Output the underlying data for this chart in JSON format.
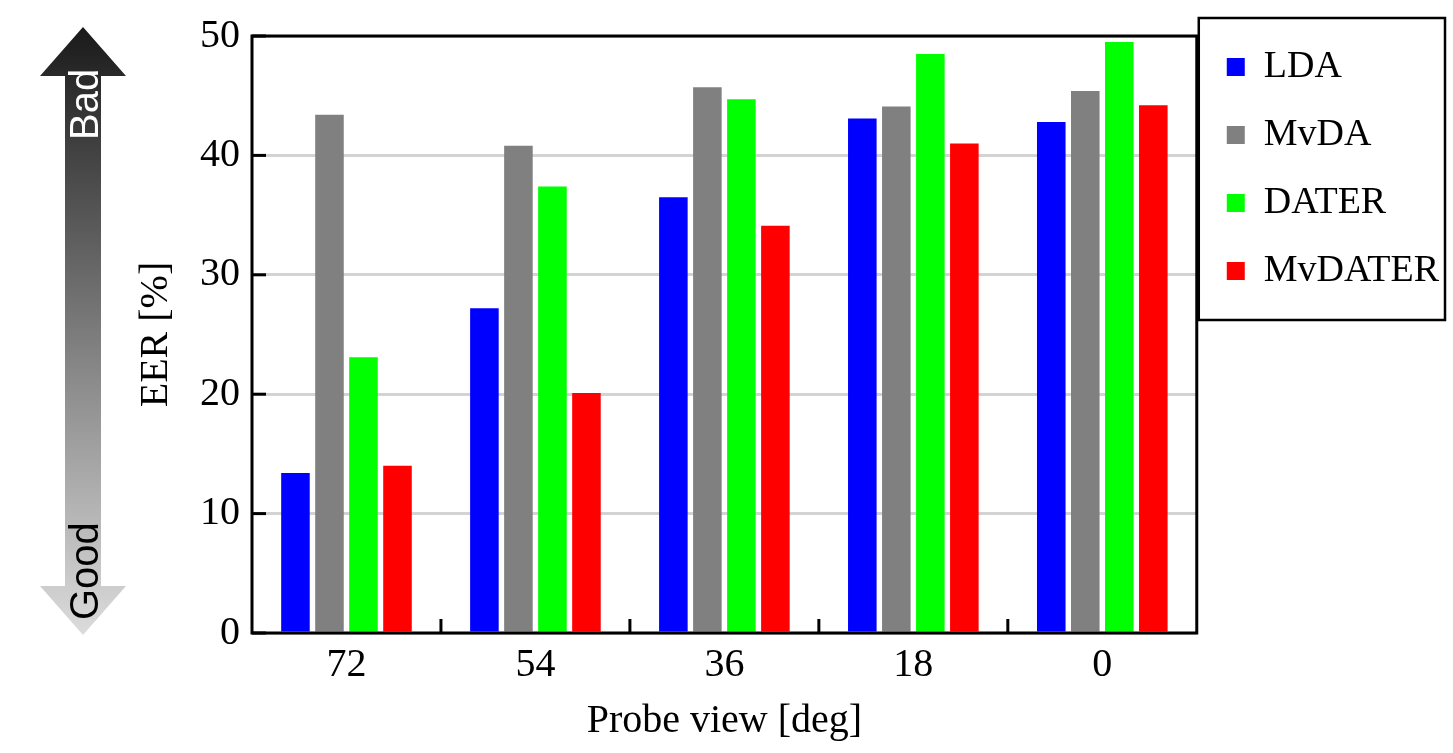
{
  "chart_data": {
    "type": "bar",
    "xlabel": "Probe view [deg]",
    "ylabel": "EER [%]",
    "categories": [
      "72",
      "54",
      "36",
      "18",
      "0"
    ],
    "series": [
      {
        "name": "LDA",
        "color": "#0000ff",
        "values": [
          13.4,
          27.2,
          36.5,
          43.1,
          42.8
        ]
      },
      {
        "name": "MvDA",
        "color": "#808080",
        "values": [
          43.4,
          40.8,
          45.7,
          44.1,
          45.4
        ]
      },
      {
        "name": "DATER",
        "color": "#00ff00",
        "values": [
          23.1,
          37.4,
          44.7,
          48.5,
          49.5
        ]
      },
      {
        "name": "MvDATER",
        "color": "#ff0000",
        "values": [
          14.0,
          20.1,
          34.1,
          41.0,
          44.2
        ]
      }
    ],
    "ylim": [
      0,
      50
    ],
    "yticks": [
      0,
      10,
      20,
      30,
      40,
      50
    ],
    "grid": "y",
    "legend": "right",
    "annotations": [
      "Bad",
      "Good"
    ]
  }
}
